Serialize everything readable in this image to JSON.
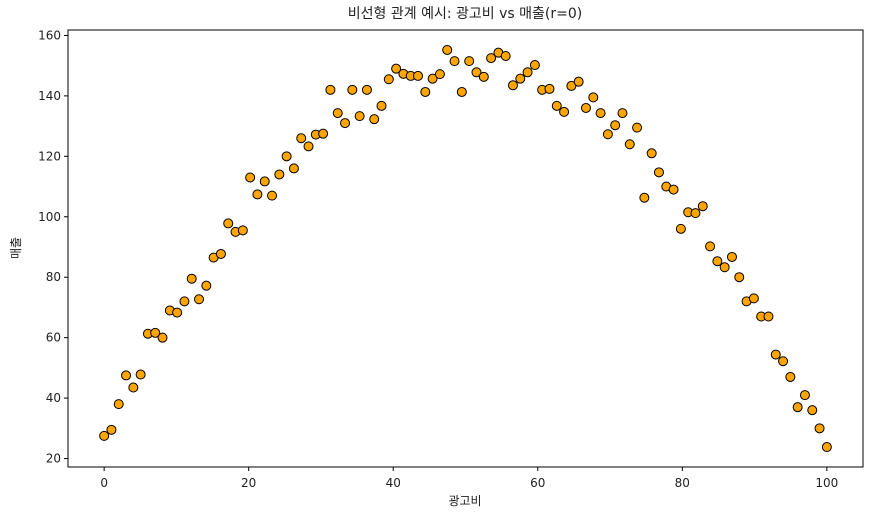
{
  "chart_data": {
    "type": "scatter",
    "title": "비선형 관계 예시: 광고비 vs 매출(r=0)",
    "xlabel": "광고비",
    "ylabel": "매출",
    "color": "#ffa500",
    "edgecolor": "#000000",
    "xlim": [
      -5,
      105
    ],
    "ylim": [
      17.2,
      161.8
    ],
    "xticks": [
      0,
      20,
      40,
      60,
      80,
      100
    ],
    "yticks": [
      20,
      40,
      60,
      80,
      100,
      120,
      140,
      160
    ],
    "x": [
      0,
      1.01,
      2.02,
      3.03,
      4.04,
      5.05,
      6.06,
      7.07,
      8.08,
      9.09,
      10.1,
      11.11,
      12.12,
      13.13,
      14.14,
      15.15,
      16.16,
      17.17,
      18.18,
      19.19,
      20.2,
      21.21,
      22.22,
      23.23,
      24.24,
      25.25,
      26.26,
      27.27,
      28.28,
      29.29,
      30.3,
      31.31,
      32.32,
      33.33,
      34.34,
      35.35,
      36.36,
      37.37,
      38.38,
      39.39,
      40.4,
      41.41,
      42.42,
      43.43,
      44.44,
      45.45,
      46.46,
      47.47,
      48.48,
      49.49,
      50.51,
      51.52,
      52.53,
      53.54,
      54.55,
      55.56,
      56.57,
      57.58,
      58.59,
      59.6,
      60.61,
      61.62,
      62.63,
      63.64,
      64.65,
      65.66,
      66.67,
      67.68,
      68.69,
      69.7,
      70.71,
      71.72,
      72.73,
      73.74,
      74.75,
      75.76,
      76.77,
      77.78,
      78.79,
      79.8,
      80.81,
      81.82,
      82.83,
      83.84,
      84.85,
      85.86,
      86.87,
      87.88,
      88.89,
      89.9,
      90.91,
      91.92,
      92.93,
      93.94,
      94.95,
      95.96,
      96.97,
      97.98,
      98.99,
      100
    ],
    "values": [
      27.5,
      29.5,
      38,
      47.5,
      43.5,
      47.8,
      61.3,
      61.6,
      60,
      69,
      68.3,
      72,
      79.5,
      72.7,
      77.2,
      86.5,
      87.7,
      97.8,
      95,
      95.5,
      113,
      107.4,
      111.7,
      107,
      114,
      120,
      116,
      126,
      123.3,
      127.2,
      127.5,
      142,
      134.3,
      131,
      142,
      133.3,
      142,
      132.3,
      136.7,
      145.5,
      149,
      147.3,
      146.6,
      146.6,
      141.3,
      145.7,
      147.2,
      155.2,
      151.5,
      141.3,
      151.5,
      147.8,
      146.3,
      152.5,
      154.3,
      153.2,
      143.5,
      145.7,
      147.8,
      150.2,
      142,
      142.3,
      136.7,
      134.7,
      143.3,
      144.7,
      136,
      139.5,
      134.3,
      127.3,
      130.3,
      134.3,
      124,
      129.5,
      106.3,
      121,
      114.7,
      110,
      109,
      96,
      101.5,
      101.2,
      103.5,
      90.2,
      85.3,
      83.3,
      86.7,
      80,
      72,
      73,
      67,
      67,
      54.4,
      52.2,
      47,
      37,
      41,
      36,
      30,
      23.8
    ]
  }
}
